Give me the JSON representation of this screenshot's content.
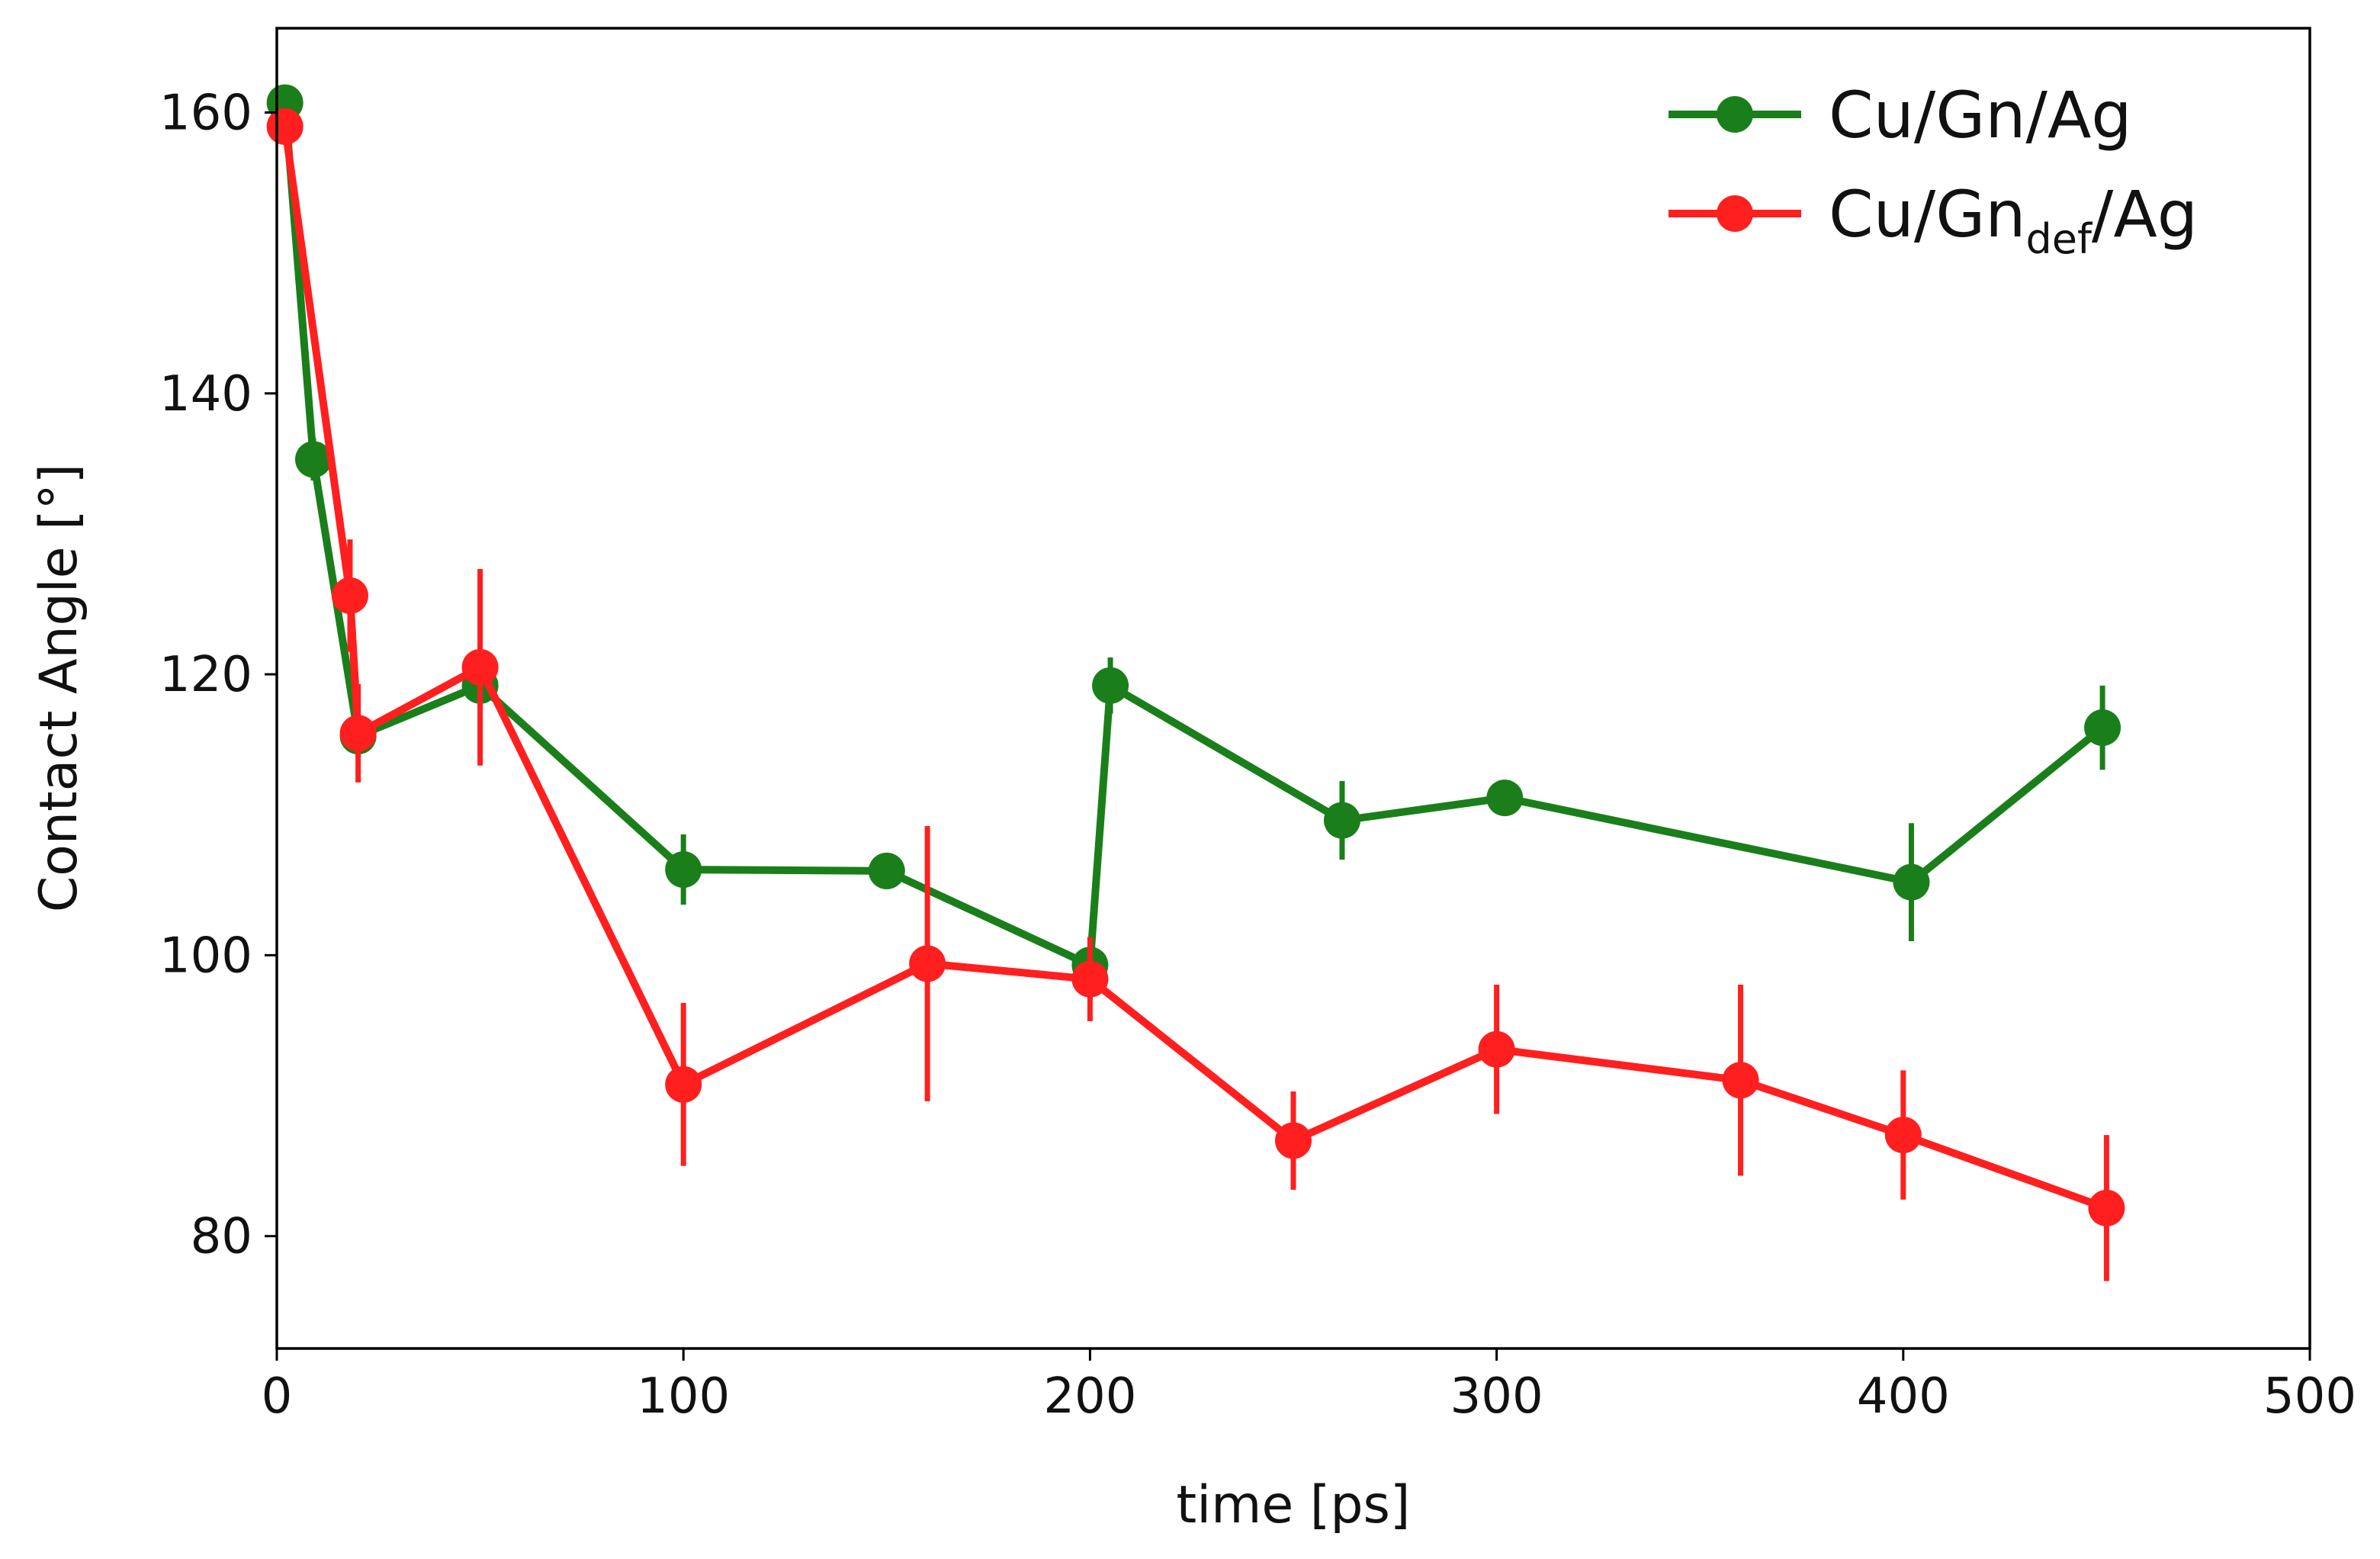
{
  "chart_data": {
    "type": "line",
    "title": "",
    "xlabel": "time [ps]",
    "ylabel": "Contact Angle [°]",
    "xlim": [
      0,
      500
    ],
    "ylim": [
      72,
      166
    ],
    "xticks": [
      0,
      100,
      200,
      300,
      400,
      500
    ],
    "yticks": [
      80,
      100,
      120,
      140,
      160
    ],
    "grid": false,
    "legend_position": "top-right",
    "series": [
      {
        "name": "Cu/Gn/Ag",
        "legend_parts": {
          "main": "Cu/Gn",
          "sub": "",
          "tail": "/Ag"
        },
        "color": "#1a7f1a",
        "x": [
          2,
          9,
          20,
          50,
          100,
          150,
          200,
          205,
          262,
          302,
          402,
          449
        ],
        "y": [
          160.7,
          135.3,
          115.6,
          119.2,
          106.1,
          106.0,
          99.3,
          119.2,
          109.6,
          111.2,
          105.2,
          116.2
        ],
        "err": [
          0.5,
          1.5,
          1.5,
          1.5,
          2.5,
          1.0,
          1.0,
          2.0,
          2.8,
          1.0,
          4.2,
          3.0
        ]
      },
      {
        "name": "Cu/Gndef/Ag",
        "legend_parts": {
          "main": "Cu/Gn",
          "sub": "def",
          "tail": "/Ag"
        },
        "color": "#ff1f1f",
        "x": [
          2,
          18,
          20,
          50,
          100,
          160,
          200,
          250,
          300,
          360,
          400,
          450
        ],
        "y": [
          159.0,
          125.6,
          115.8,
          120.5,
          90.8,
          99.4,
          98.3,
          86.8,
          93.3,
          91.1,
          87.2,
          82.0
        ],
        "err": [
          0.5,
          4.0,
          3.5,
          7.0,
          5.8,
          9.8,
          3.0,
          3.5,
          4.6,
          6.8,
          4.6,
          5.2
        ]
      }
    ]
  }
}
